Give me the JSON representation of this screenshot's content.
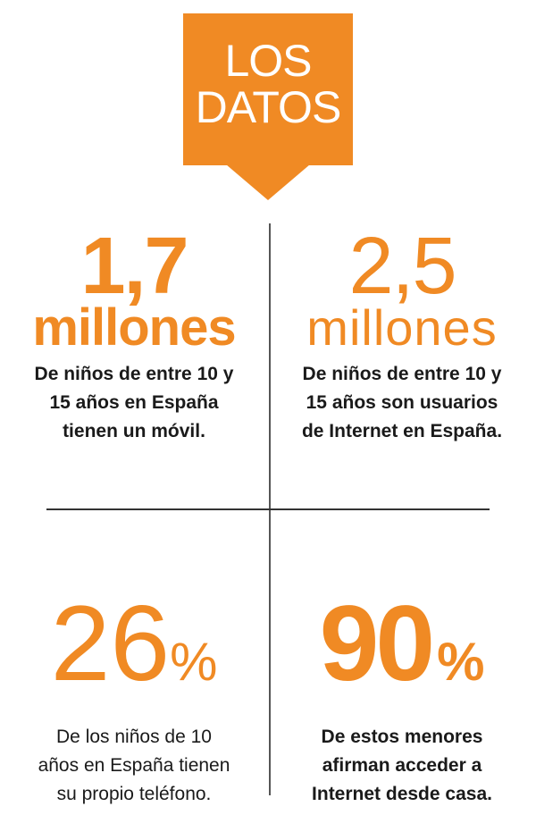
{
  "banner": {
    "line1": "LOS",
    "line2": "DATOS"
  },
  "accent_color": "#f08a24",
  "stats": [
    {
      "value": "1,7",
      "unit": "millones",
      "description": [
        "De niños de entre 10 y",
        "15 años en España",
        "tienen un móvil."
      ]
    },
    {
      "value": "2,5",
      "unit": "millones",
      "description": [
        "De niños de entre 10 y",
        "15 años son usuarios",
        "de Internet en España."
      ]
    },
    {
      "value": "26",
      "unit": "%",
      "description": [
        "De los niños de 10",
        "años en España tienen",
        "su propio teléfono."
      ]
    },
    {
      "value": "90",
      "unit": "%",
      "description": [
        "De estos menores",
        "afirman acceder a",
        "Internet desde casa."
      ]
    }
  ]
}
